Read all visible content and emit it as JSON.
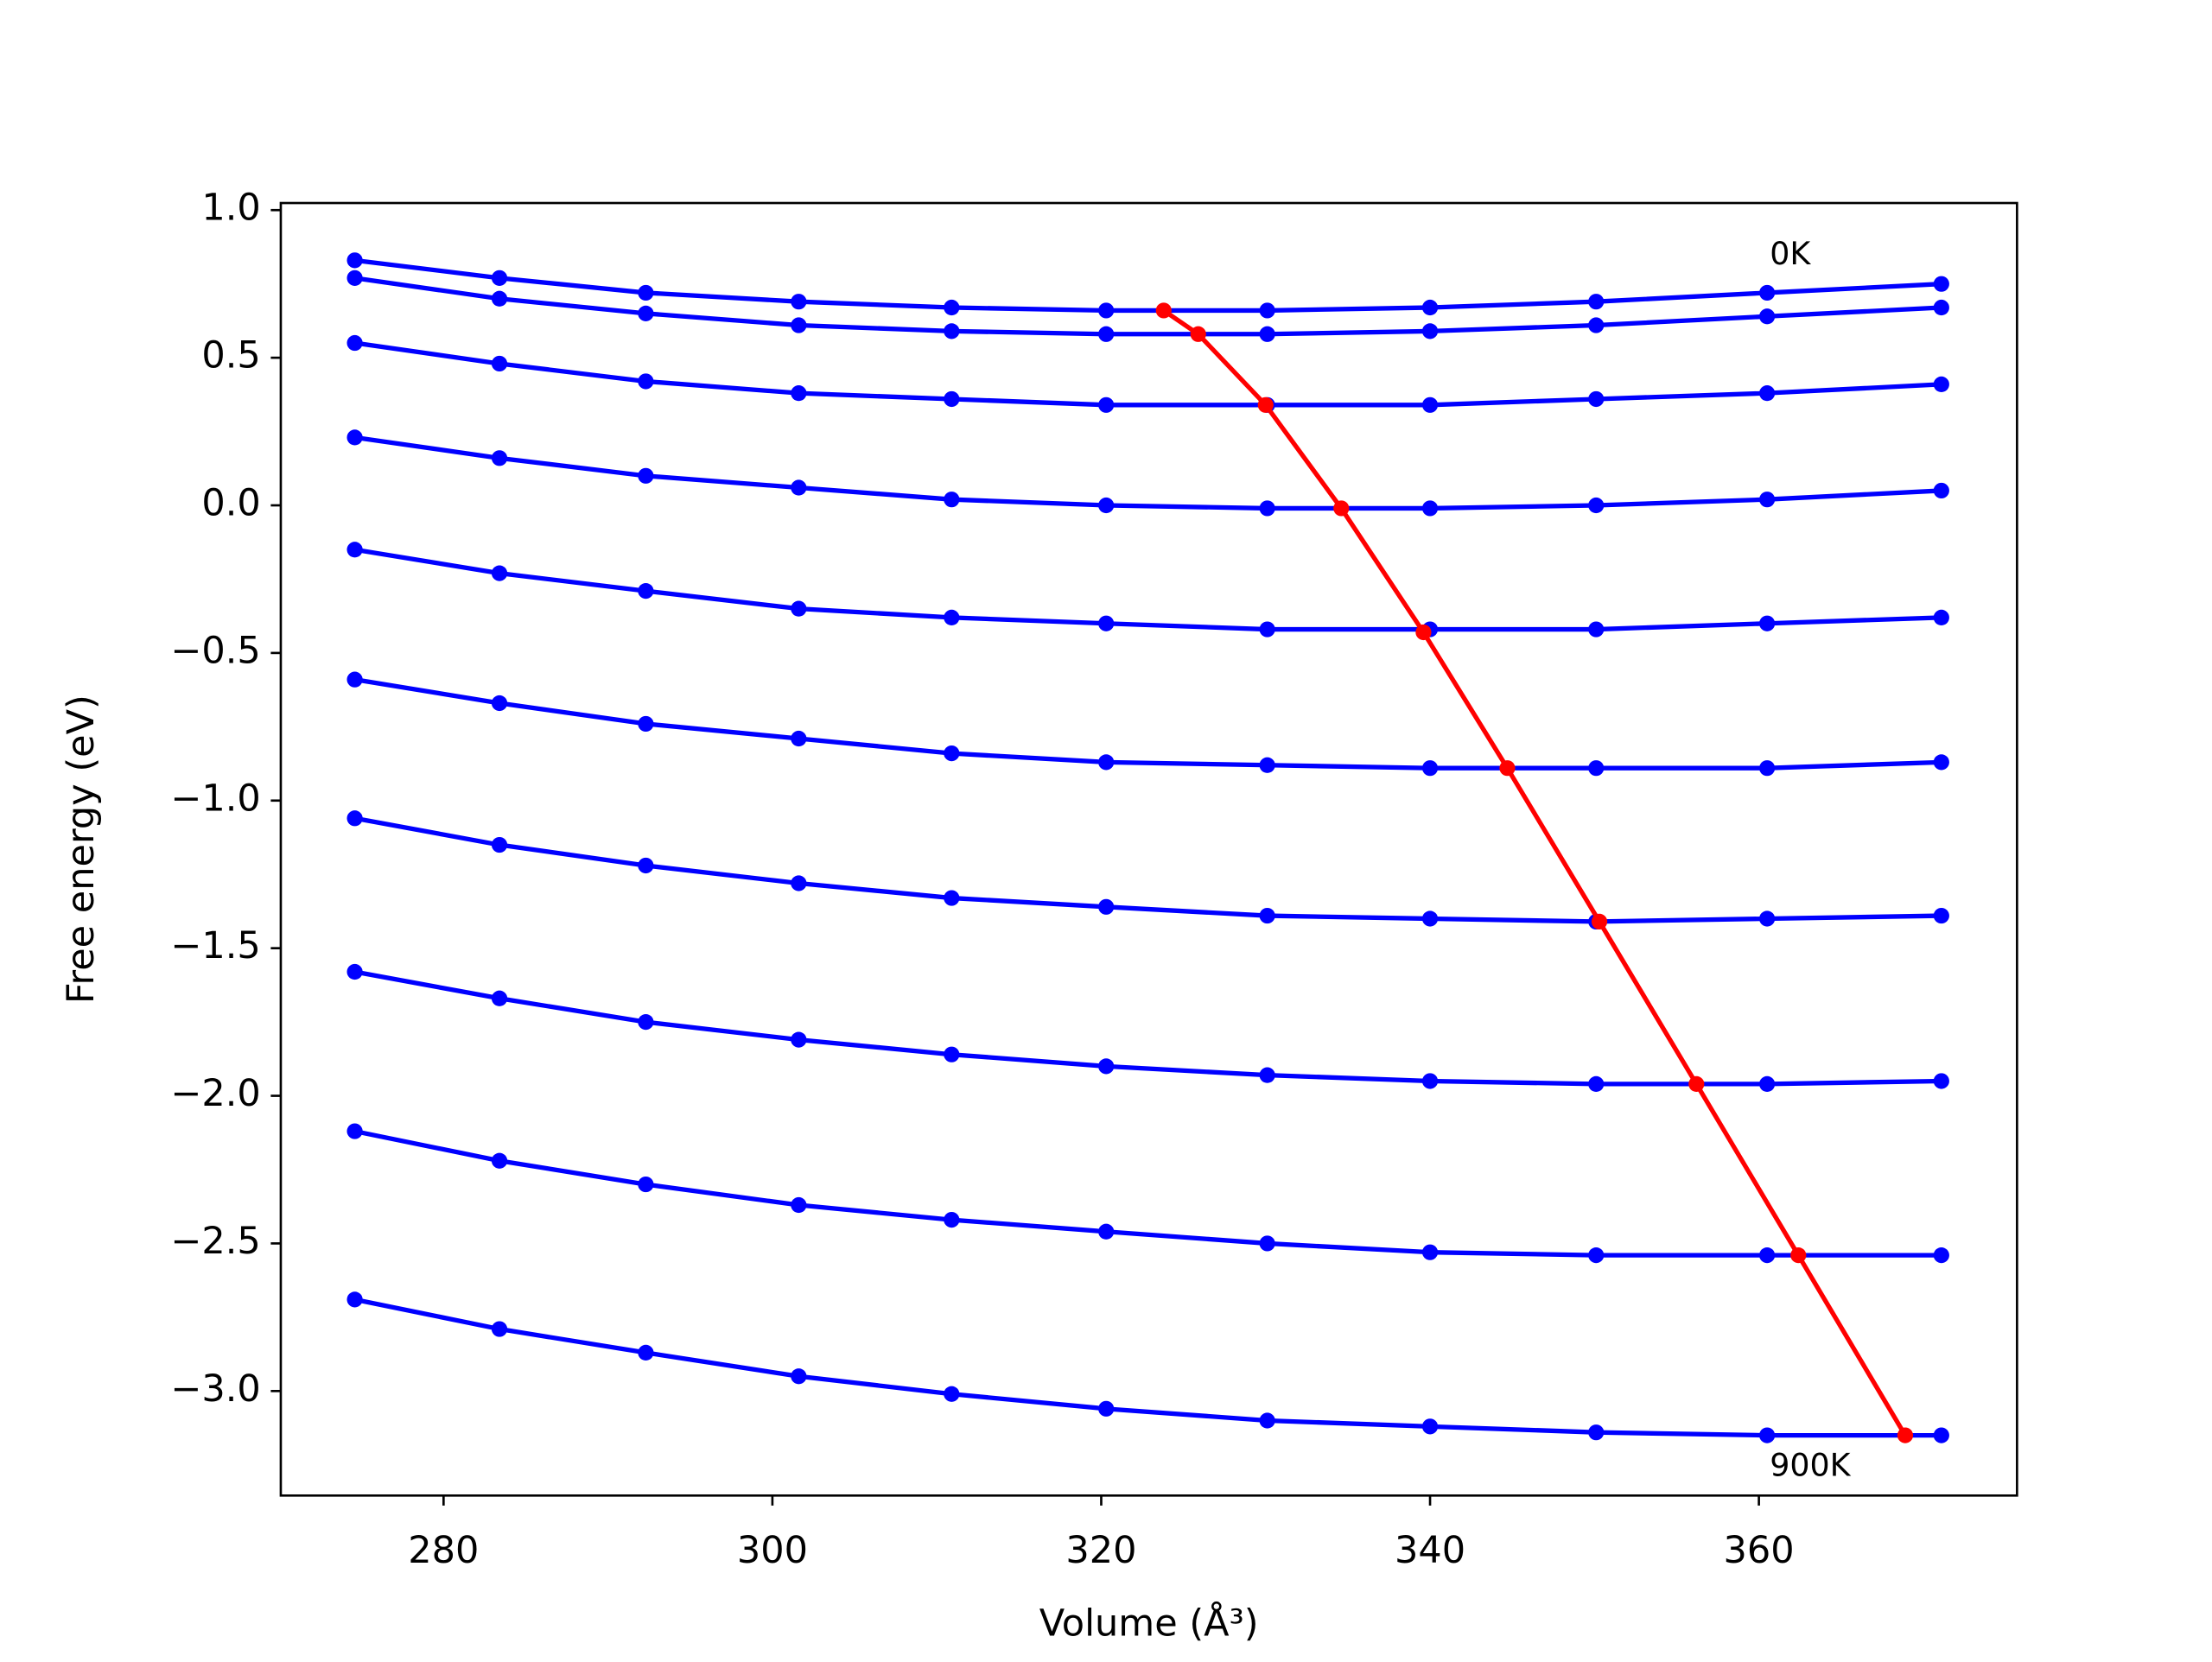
{
  "chart_data": {
    "type": "line",
    "xlabel": "Volume (Å³)",
    "ylabel": "Free energy (eV)",
    "x": [
      274.6,
      283.4,
      292.3,
      301.6,
      310.9,
      320.3,
      330.1,
      340.0,
      350.1,
      360.5,
      371.1
    ],
    "series": [
      {
        "color": "#0000ff",
        "values": [
          0.83,
          0.77,
          0.72,
          0.69,
          0.67,
          0.66,
          0.66,
          0.67,
          0.69,
          0.72,
          0.75
        ]
      },
      {
        "color": "#0000ff",
        "values": [
          0.77,
          0.7,
          0.65,
          0.61,
          0.59,
          0.58,
          0.58,
          0.59,
          0.61,
          0.64,
          0.67
        ]
      },
      {
        "color": "#0000ff",
        "values": [
          0.55,
          0.48,
          0.42,
          0.38,
          0.36,
          0.34,
          0.34,
          0.34,
          0.36,
          0.38,
          0.41
        ]
      },
      {
        "color": "#0000ff",
        "values": [
          0.23,
          0.16,
          0.1,
          0.06,
          0.02,
          0.0,
          -0.01,
          -0.01,
          0.0,
          0.02,
          0.05
        ]
      },
      {
        "color": "#0000ff",
        "values": [
          -0.15,
          -0.23,
          -0.29,
          -0.35,
          -0.38,
          -0.4,
          -0.42,
          -0.42,
          -0.42,
          -0.4,
          -0.38
        ]
      },
      {
        "color": "#0000ff",
        "values": [
          -0.59,
          -0.67,
          -0.74,
          -0.79,
          -0.84,
          -0.87,
          -0.88,
          -0.89,
          -0.89,
          -0.89,
          -0.87
        ]
      },
      {
        "color": "#0000ff",
        "values": [
          -1.06,
          -1.15,
          -1.22,
          -1.28,
          -1.33,
          -1.36,
          -1.39,
          -1.4,
          -1.41,
          -1.4,
          -1.39
        ]
      },
      {
        "color": "#0000ff",
        "values": [
          -1.58,
          -1.67,
          -1.75,
          -1.81,
          -1.86,
          -1.9,
          -1.93,
          -1.95,
          -1.96,
          -1.96,
          -1.95
        ]
      },
      {
        "color": "#0000ff",
        "values": [
          -2.12,
          -2.22,
          -2.3,
          -2.37,
          -2.42,
          -2.46,
          -2.5,
          -2.53,
          -2.54,
          -2.54,
          -2.54
        ]
      },
      {
        "color": "#0000ff",
        "values": [
          -2.69,
          -2.79,
          -2.87,
          -2.95,
          -3.01,
          -3.06,
          -3.1,
          -3.12,
          -3.14,
          -3.15,
          -3.15
        ]
      },
      {
        "color": "#ff0000",
        "x": [
          323.8,
          325.9,
          330.0,
          334.6,
          339.6,
          344.7,
          350.3,
          356.2,
          362.4,
          368.9
        ],
        "values": [
          0.66,
          0.58,
          0.34,
          -0.01,
          -0.43,
          -0.89,
          -1.41,
          -1.96,
          -2.54,
          -3.15
        ]
      }
    ],
    "annotations": [
      "0K",
      "900K"
    ],
    "xlim": [
      270.1,
      375.7
    ],
    "xticks": [
      280,
      300,
      320,
      340,
      360
    ],
    "ylim": [
      -3.354,
      1.024
    ],
    "yticks": [
      {
        "value": 1.0,
        "label": "1.0"
      },
      {
        "value": 0.5,
        "label": "0.5"
      },
      {
        "value": 0.0,
        "label": "0.0"
      },
      {
        "value": -0.5,
        "label": "−0.5"
      },
      {
        "value": -1.0,
        "label": "−1.0"
      },
      {
        "value": -1.5,
        "label": "−1.5"
      },
      {
        "value": -2.0,
        "label": "−2.0"
      },
      {
        "value": -2.5,
        "label": "−2.5"
      },
      {
        "value": -3.0,
        "label": "−3.0"
      }
    ],
    "grid": false
  }
}
